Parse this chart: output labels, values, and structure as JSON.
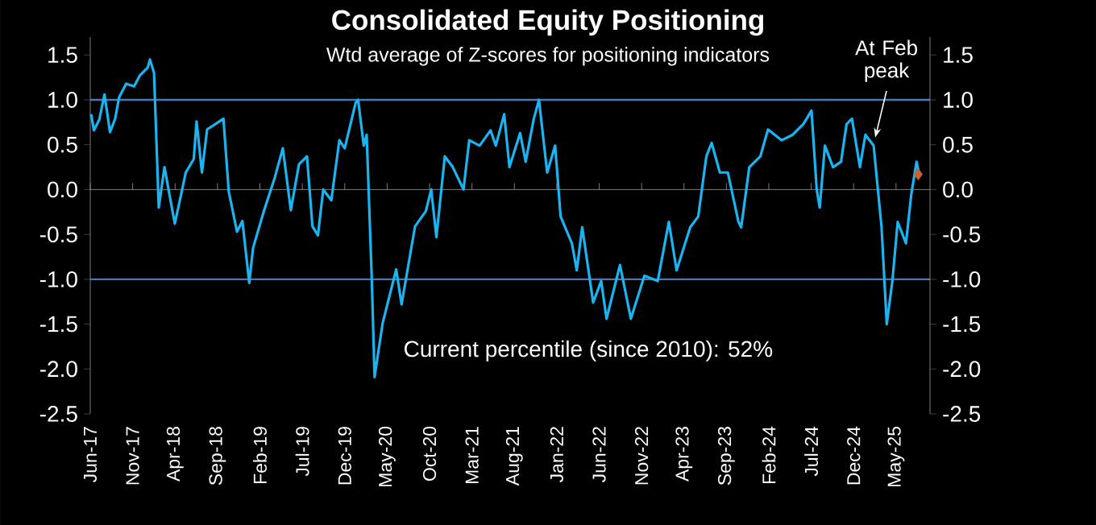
{
  "chart_data": {
    "type": "line",
    "title": "Consolidated Equity Positioning",
    "subtitle": "Wtd average of Z-scores for positioning indicators",
    "xlim": [
      "2017-06",
      "2025-09"
    ],
    "ylim": [
      -2.5,
      1.7
    ],
    "y2lim": [
      -2.5,
      1.7
    ],
    "xticks": [
      {
        "value": "2017-06",
        "label": "Jun-17"
      },
      {
        "value": "2017-11",
        "label": "Nov-17"
      },
      {
        "value": "2018-04",
        "label": "Apr-18"
      },
      {
        "value": "2018-09",
        "label": "Sep-18"
      },
      {
        "value": "2019-02",
        "label": "Feb-19"
      },
      {
        "value": "2019-07",
        "label": "Jul-19"
      },
      {
        "value": "2019-12",
        "label": "Dec-19"
      },
      {
        "value": "2020-05",
        "label": "May-20"
      },
      {
        "value": "2020-10",
        "label": "Oct-20"
      },
      {
        "value": "2021-03",
        "label": "Mar-21"
      },
      {
        "value": "2021-08",
        "label": "Aug-21"
      },
      {
        "value": "2022-01",
        "label": "Jan-22"
      },
      {
        "value": "2022-06",
        "label": "Jun-22"
      },
      {
        "value": "2022-11",
        "label": "Nov-22"
      },
      {
        "value": "2023-04",
        "label": "Apr-23"
      },
      {
        "value": "2023-09",
        "label": "Sep-23"
      },
      {
        "value": "2024-02",
        "label": "Feb-24"
      },
      {
        "value": "2024-07",
        "label": "Jul-24"
      },
      {
        "value": "2024-12",
        "label": "Dec-24"
      },
      {
        "value": "2025-05",
        "label": "May-25"
      }
    ],
    "yticks": [
      1.5,
      {
        "value": 1,
        "label": "1.0"
      },
      0.5,
      {
        "value": 0,
        "label": "0.0"
      },
      -0.5,
      {
        "value": -1,
        "label": "-1.0"
      },
      -1.5,
      {
        "value": -2,
        "label": "-2.0"
      },
      -2.5
    ],
    "y2ticks": [
      1.5,
      {
        "value": 1,
        "label": "1.0"
      },
      0.5,
      {
        "value": 0,
        "label": "0.0"
      },
      -0.5,
      {
        "value": -1,
        "label": "-1.0"
      },
      -1.5,
      {
        "value": -2,
        "label": "-2.0"
      },
      -2.5
    ],
    "ref_lines": [
      {
        "axis": "y",
        "value": 1,
        "color": "#4a78b5"
      },
      {
        "axis": "y",
        "value": -1,
        "color": "#4a78b5"
      }
    ],
    "annotations": [
      {
        "text": "At Feb peak",
        "x": "2025-02-11",
        "y": 0.49
      },
      "Current percentile (since 2010): 52%"
    ],
    "series": [
      {
        "color": "#1ab4f0",
        "x": [
          "2017-06-04",
          "2017-06-14",
          "2017-07-03",
          "2017-07-22",
          "2017-08-11",
          "2017-08-30",
          "2017-09-13",
          "2017-10-08",
          "2017-11-06",
          "2017-11-26",
          "2017-12-25",
          "2018-01-02",
          "2018-01-17",
          "2018-02-03",
          "2018-02-22",
          "2018-03-11",
          "2018-03-31",
          "2018-05-09",
          "2018-06-07",
          "2018-06-17",
          "2018-07-06",
          "2018-07-25",
          "2018-08-24",
          "2018-09-22",
          "2018-10-11",
          "2018-11-10",
          "2018-11-29",
          "2018-12-24",
          "2019-01-07",
          "2019-02-15",
          "2019-03-24",
          "2019-04-22",
          "2019-05-21",
          "2019-06-19",
          "2019-07-18",
          "2019-08-07",
          "2019-08-27",
          "2019-09-15",
          "2019-10-14",
          "2019-11-12",
          "2019-12-01",
          "2020-01-10",
          "2020-01-19",
          "2020-02-08",
          "2020-02-18",
          "2020-03-07",
          "2020-03-17",
          "2020-04-15",
          "2020-06-03",
          "2020-06-22",
          "2020-08-10",
          "2020-09-18",
          "2020-10-07",
          "2020-10-26",
          "2020-11-25",
          "2020-12-24",
          "2021-02-01",
          "2021-02-20",
          "2021-03-29",
          "2021-05-07",
          "2021-05-26",
          "2021-06-25",
          "2021-07-14",
          "2021-08-22",
          "2021-09-11",
          "2021-10-10",
          "2021-10-29",
          "2021-11-27",
          "2021-12-26",
          "2022-01-15",
          "2022-02-23",
          "2022-03-12",
          "2022-04-01",
          "2022-05-10",
          "2022-06-08",
          "2022-06-27",
          "2022-08-15",
          "2022-09-23",
          "2022-11-11",
          "2022-12-29",
          "2023-02-07",
          "2023-03-05",
          "2023-04-23",
          "2023-05-22",
          "2023-06-20",
          "2023-07-09",
          "2023-08-08",
          "2023-09-06",
          "2023-10-14",
          "2023-10-24",
          "2023-11-22",
          "2024-01-01",
          "2024-01-29",
          "2024-03-17",
          "2024-04-25",
          "2024-06-03",
          "2024-07-02",
          "2024-07-21",
          "2024-08-01",
          "2024-08-20",
          "2024-09-18",
          "2024-10-17",
          "2024-11-06",
          "2024-11-25",
          "2024-12-24",
          "2025-01-13",
          "2025-02-11",
          "2025-03-10",
          "2025-03-29",
          "2025-04-18",
          "2025-05-07",
          "2025-06-06",
          "2025-06-25",
          "2025-07-14",
          "2025-07-23"
        ],
        "values": [
          0.84,
          0.66,
          0.78,
          1.06,
          0.64,
          0.79,
          1.03,
          1.18,
          1.15,
          1.27,
          1.36,
          1.45,
          1.3,
          -0.2,
          0.25,
          -0.05,
          -0.38,
          0.19,
          0.34,
          0.76,
          0.19,
          0.67,
          0.73,
          0.79,
          -0.02,
          -0.47,
          -0.35,
          -1.04,
          -0.65,
          -0.23,
          0.13,
          0.46,
          -0.23,
          0.28,
          0.37,
          -0.41,
          -0.51,
          0.0,
          -0.12,
          0.55,
          0.46,
          0.97,
          1.0,
          0.49,
          0.61,
          -1.01,
          -2.09,
          -1.49,
          -0.89,
          -1.28,
          -0.41,
          -0.24,
          0.0,
          -0.53,
          0.37,
          0.25,
          0.0,
          0.55,
          0.49,
          0.66,
          0.49,
          0.84,
          0.25,
          0.63,
          0.31,
          0.79,
          1.0,
          0.19,
          0.49,
          -0.3,
          -0.6,
          -0.9,
          -0.42,
          -1.26,
          -1.02,
          -1.44,
          -0.84,
          -1.44,
          -0.96,
          -1.02,
          -0.36,
          -0.9,
          -0.42,
          -0.3,
          0.37,
          0.52,
          0.19,
          0.19,
          -0.36,
          -0.42,
          0.25,
          0.37,
          0.67,
          0.55,
          0.61,
          0.73,
          0.88,
          0.0,
          -0.2,
          0.49,
          0.25,
          0.31,
          0.73,
          0.79,
          0.25,
          0.61,
          0.49,
          -0.42,
          -1.5,
          -1.02,
          -0.36,
          -0.6,
          -0.05,
          0.31,
          0.18
        ]
      },
      {
        "type": "scatter",
        "marker": "diamond",
        "color": "#c8642a",
        "x": [
          "2025-07-20"
        ],
        "values": [
          0.17
        ]
      }
    ]
  }
}
